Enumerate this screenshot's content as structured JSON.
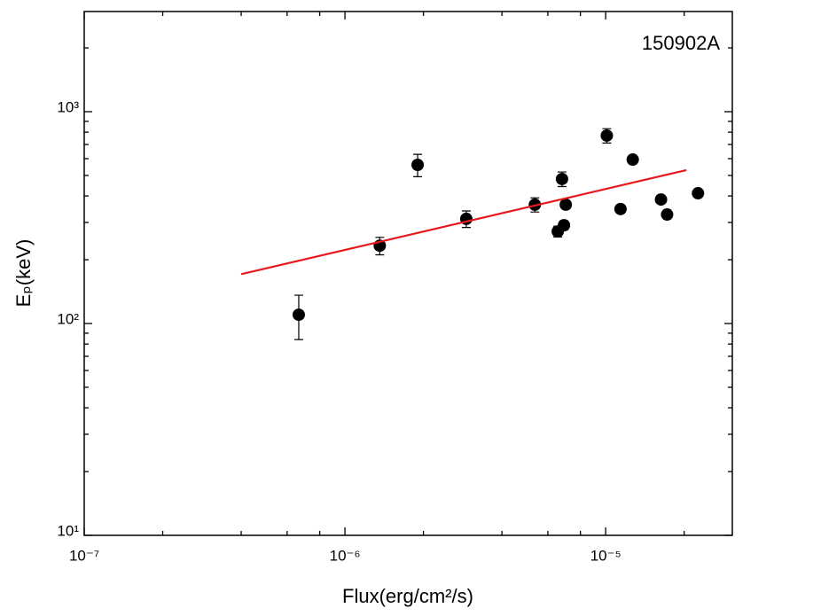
{
  "chart_data": {
    "type": "scatter",
    "annotation": "150902A",
    "x_label": "Flux(erg/cm²/s)",
    "y_label": "Eₚ(keV)",
    "xscale": "log",
    "yscale": "log",
    "xlim": [
      1e-07,
      3.06e-05
    ],
    "ylim": [
      10,
      2970
    ],
    "xticks": [
      {
        "value": 1e-07,
        "label": "10⁻⁷"
      },
      {
        "value": 1e-06,
        "label": "10⁻⁶"
      },
      {
        "value": 1e-05,
        "label": "10⁻⁵"
      }
    ],
    "yticks": [
      {
        "value": 10,
        "label": "10¹"
      },
      {
        "value": 100,
        "label": "10²"
      },
      {
        "value": 1000,
        "label": "10³"
      }
    ],
    "series": [
      {
        "color": "#000000",
        "x": [
          6.65e-07,
          1.36e-06,
          1.9e-06,
          2.92e-06,
          5.35e-06,
          6.55e-06,
          6.8e-06,
          6.92e-06,
          7.03e-06,
          1.01e-05,
          1.14e-05,
          1.27e-05,
          1.63e-05,
          1.72e-05,
          2.26e-05
        ],
        "values": [
          110,
          233,
          561,
          312,
          364,
          272,
          481,
          291,
          364,
          771,
          347,
          594,
          385,
          327,
          412
        ],
        "errors": [
          26,
          22,
          68,
          28,
          28,
          16,
          38,
          14,
          16,
          60,
          15,
          25,
          15,
          12,
          14
        ]
      },
      {
        "color": "#e8191c",
        "x": [
          4e-07,
          2.04e-05
        ],
        "values": [
          171,
          530
        ]
      }
    ]
  }
}
